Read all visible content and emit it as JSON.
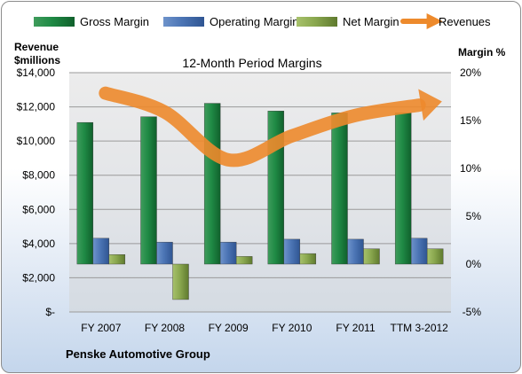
{
  "chart_data": {
    "type": "bar",
    "title": "12-Month Period Margins",
    "company": "Penske Automotive Group",
    "left_axis_title": [
      "Revenue",
      "$millions"
    ],
    "right_axis_title": "Margin %",
    "categories": [
      "FY 2007",
      "FY 2008",
      "FY 2009",
      "FY 2010",
      "FY 2011",
      "TTM 3-2012"
    ],
    "left_axis": {
      "min": 0,
      "max": 14000,
      "step": 2000,
      "tick_labels": [
        "$-",
        "$2,000",
        "$4,000",
        "$6,000",
        "$8,000",
        "$10,000",
        "$12,000",
        "$14,000"
      ]
    },
    "right_axis": {
      "min": -5,
      "max": 20,
      "step": 5,
      "tick_labels": [
        "-5%",
        "0%",
        "5%",
        "10%",
        "15%",
        "20%"
      ]
    },
    "series": [
      {
        "name": "Gross Margin",
        "axis": "right",
        "values": [
          14.8,
          15.4,
          16.8,
          16.0,
          15.8,
          15.8
        ],
        "color": "#1e7d3f"
      },
      {
        "name": "Operating Margin",
        "axis": "right",
        "values": [
          2.7,
          2.3,
          2.3,
          2.6,
          2.6,
          2.7
        ],
        "color": "#4a72b0"
      },
      {
        "name": "Net Margin",
        "axis": "right",
        "values": [
          1.0,
          -3.7,
          0.8,
          1.1,
          1.6,
          1.6
        ],
        "color": "#86a44a"
      },
      {
        "name": "Revenues",
        "axis": "left",
        "type": "line",
        "values": [
          12800,
          11700,
          8900,
          10300,
          11500,
          12100
        ],
        "color": "#ed8a2c"
      }
    ],
    "grid": true,
    "legend_position": "top"
  }
}
